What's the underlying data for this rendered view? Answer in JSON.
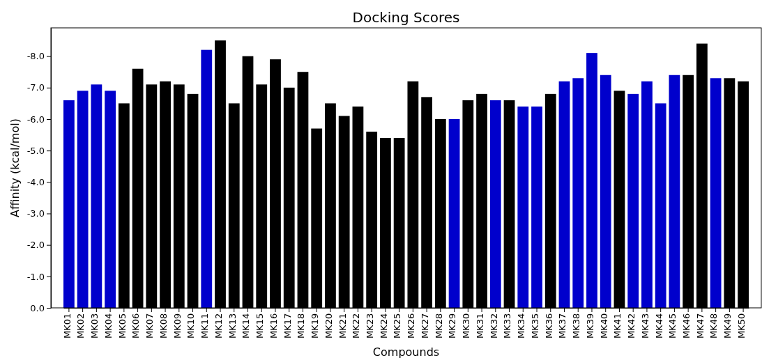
{
  "chart_data": {
    "type": "bar",
    "title": "Docking Scores",
    "xlabel": "Compounds",
    "ylabel": "Affinity (kcal/mol)",
    "categories": [
      "MK01",
      "MK02",
      "MK03",
      "MK04",
      "MK05",
      "MK06",
      "MK07",
      "MK08",
      "MK09",
      "MK10",
      "MK11",
      "MK12",
      "MK13",
      "MK14",
      "MK15",
      "MK16",
      "MK17",
      "MK18",
      "MK19",
      "MK20",
      "MK21",
      "MK22",
      "MK23",
      "MK24",
      "MK25",
      "MK26",
      "MK27",
      "MK28",
      "MK29",
      "MK30",
      "MK31",
      "MK32",
      "MK33",
      "MK34",
      "MK35",
      "MK36",
      "MK37",
      "MK38",
      "MK39",
      "MK40",
      "MK41",
      "MK42",
      "MK43",
      "MK44",
      "MK45",
      "MK46",
      "MK47",
      "MK48",
      "MK49",
      "MK50"
    ],
    "values": [
      -6.6,
      -6.9,
      -7.1,
      -6.9,
      -6.5,
      -7.6,
      -7.1,
      -7.2,
      -7.1,
      -6.8,
      -8.2,
      -8.5,
      -6.5,
      -8.0,
      -7.1,
      -7.9,
      -7.0,
      -7.5,
      -5.7,
      -6.5,
      -6.1,
      -6.4,
      -5.6,
      -5.4,
      -5.4,
      -7.2,
      -6.7,
      -6.0,
      -6.0,
      -6.6,
      -6.8,
      -6.6,
      -6.6,
      -6.4,
      -6.4,
      -6.8,
      -7.2,
      -7.3,
      -8.1,
      -7.4,
      -6.9,
      -6.8,
      -7.2,
      -6.5,
      -7.4,
      -7.4,
      -8.4,
      -7.3,
      -7.3,
      -7.2
    ],
    "colors": [
      "#0000cc",
      "#0000cc",
      "#0000cc",
      "#0000cc",
      "#000000",
      "#000000",
      "#000000",
      "#000000",
      "#000000",
      "#000000",
      "#0000cc",
      "#000000",
      "#000000",
      "#000000",
      "#000000",
      "#000000",
      "#000000",
      "#000000",
      "#000000",
      "#000000",
      "#000000",
      "#000000",
      "#000000",
      "#000000",
      "#000000",
      "#000000",
      "#000000",
      "#000000",
      "#0000cc",
      "#000000",
      "#000000",
      "#0000cc",
      "#000000",
      "#0000cc",
      "#0000cc",
      "#000000",
      "#0000cc",
      "#0000cc",
      "#0000cc",
      "#0000cc",
      "#000000",
      "#0000cc",
      "#0000cc",
      "#0000cc",
      "#0000cc",
      "#000000",
      "#000000",
      "#0000cc",
      "#000000",
      "#000000"
    ],
    "ylim": [
      0,
      -8.9
    ],
    "yticks": [
      {
        "value": 0,
        "label": "0.0"
      },
      {
        "value": -1,
        "label": "-1.0"
      },
      {
        "value": -2,
        "label": "-2.0"
      },
      {
        "value": -3,
        "label": "-3.0"
      },
      {
        "value": -4,
        "label": "-4.0"
      },
      {
        "value": -5,
        "label": "-5.0"
      },
      {
        "value": -6,
        "label": "-6.0"
      },
      {
        "value": -7,
        "label": "-7.0"
      },
      {
        "value": -8,
        "label": "-8.0"
      }
    ]
  }
}
